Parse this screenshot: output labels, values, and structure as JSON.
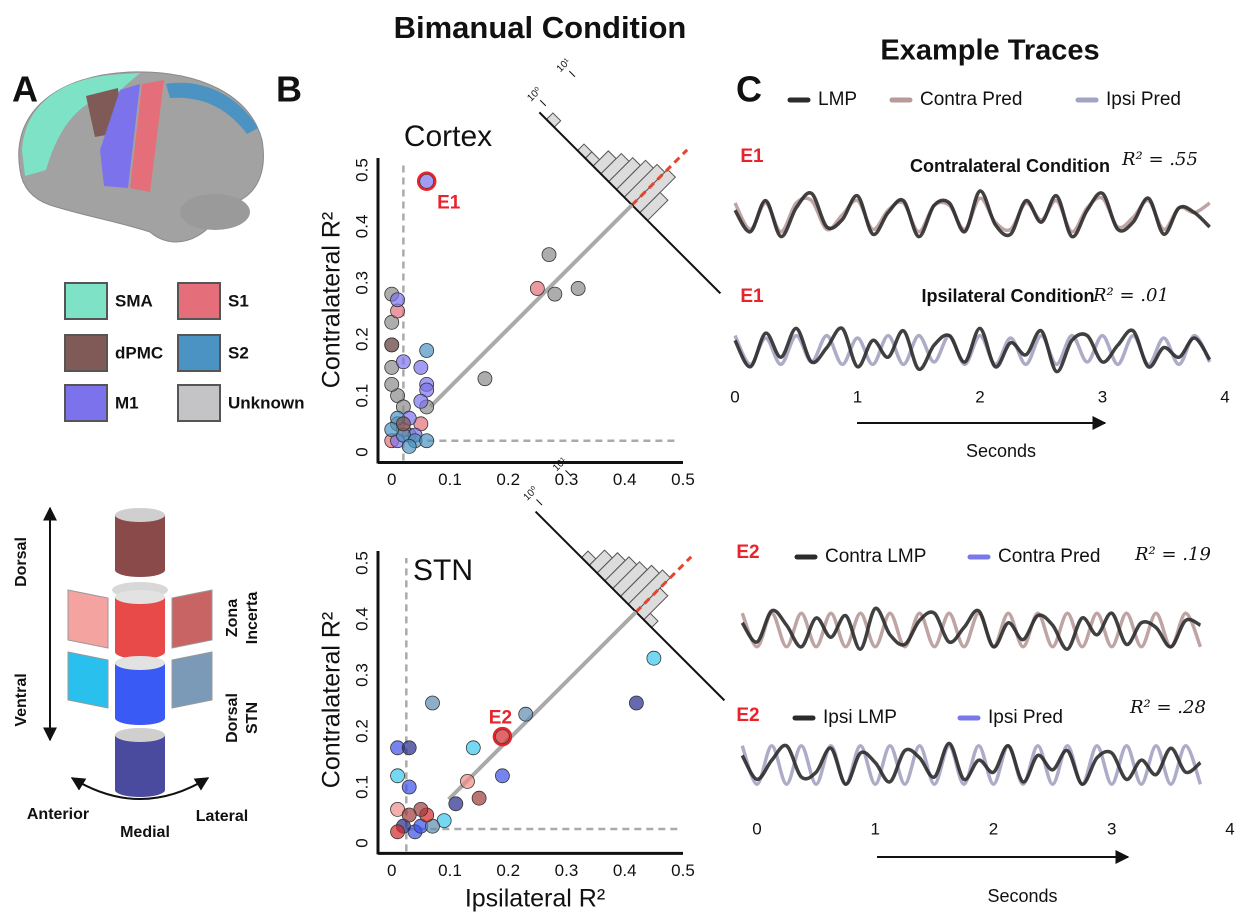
{
  "title": "Bimanual Condition",
  "panel_labels": {
    "a": "A",
    "b": "B",
    "c": "C"
  },
  "region_legend": [
    {
      "name": "SMA",
      "color": "#7ee3c6"
    },
    {
      "name": "S1",
      "color": "#e46f7a"
    },
    {
      "name": "dPMC",
      "color": "#7f5a57"
    },
    {
      "name": "S2",
      "color": "#4a93c2"
    },
    {
      "name": "M1",
      "color": "#7b72ec"
    },
    {
      "name": "Unknown",
      "color": "#c4c4c6"
    }
  ],
  "stn_diagram": {
    "dorsal": "Dorsal",
    "ventral": "Ventral",
    "anterior": "Anterior",
    "medial": "Medial",
    "lateral": "Lateral",
    "zona_incerta": [
      "Zona",
      "Incerta"
    ],
    "dorsal_stn": [
      "Dorsal",
      "STN"
    ]
  },
  "chart_data": [
    {
      "type": "scatter",
      "title": "Cortex",
      "y_label": "Contralateral R²",
      "xlim": [
        -0.015,
        0.5
      ],
      "ylim": [
        -0.015,
        0.5
      ],
      "xticks": [
        0,
        0.1,
        0.2,
        0.3,
        0.4,
        0.5
      ],
      "yticks": [
        0,
        0.1,
        0.2,
        0.3,
        0.4,
        0.5
      ],
      "threshold": 0.02,
      "series": [
        {
          "color": "#8a8a8a",
          "x": [
            0,
            0,
            0,
            0.01,
            0.02,
            0,
            0.27,
            0.28,
            0.32,
            0.16,
            0.06,
            0.01,
            0.03,
            0
          ],
          "values": [
            0.28,
            0.23,
            0.19,
            0.1,
            0.08,
            0.15,
            0.35,
            0.28,
            0.29,
            0.13,
            0.08,
            0.05,
            0.03,
            0.12
          ]
        },
        {
          "color": "#e46f7a",
          "x": [
            0.25,
            0.01,
            0.02,
            0.05,
            0
          ],
          "values": [
            0.29,
            0.25,
            0.04,
            0.05,
            0.02
          ]
        },
        {
          "color": "#7b72ec",
          "x": [
            0.01,
            0.02,
            0.05,
            0.06,
            0.06,
            0.05,
            0.03,
            0.04,
            0.01,
            0.06
          ],
          "values": [
            0.27,
            0.16,
            0.15,
            0.12,
            0.11,
            0.09,
            0.06,
            0.03,
            0.02,
            0.48
          ]
        },
        {
          "color": "#4a93c2",
          "x": [
            0.06,
            0.01,
            0.02,
            0.04,
            0.06,
            0,
            0.03
          ],
          "values": [
            0.18,
            0.06,
            0.03,
            0.02,
            0.02,
            0.04,
            0.01
          ]
        },
        {
          "color": "#7f5a57",
          "x": [
            0,
            0.02
          ],
          "values": [
            0.19,
            0.05
          ]
        }
      ],
      "annotations": [
        {
          "text": "E1",
          "x": 0.06,
          "y": 0.48
        }
      ],
      "histogram": {
        "counts": [
          1,
          0,
          0,
          0,
          1,
          1,
          2,
          3,
          4,
          6,
          8,
          10,
          3
        ],
        "lim": [
          0.6,
          30
        ],
        "log": true,
        "scale_ticks": [
          {
            "value": 1,
            "label": "10⁰"
          },
          {
            "value": 10,
            "label": "10¹"
          }
        ]
      }
    },
    {
      "type": "scatter",
      "title": "STN",
      "y_label": "Contralateral R²",
      "x_label": "Ipsilateral R²",
      "xlim": [
        -0.015,
        0.5
      ],
      "ylim": [
        -0.015,
        0.5
      ],
      "xticks": [
        0,
        0.1,
        0.2,
        0.3,
        0.4,
        0.5
      ],
      "yticks": [
        0,
        0.1,
        0.2,
        0.3,
        0.4,
        0.5
      ],
      "threshold": 0.025,
      "series": [
        {
          "color": "#39c8ee",
          "x": [
            0.01,
            0.14,
            0.45,
            0.09
          ],
          "values": [
            0.12,
            0.17,
            0.33,
            0.04
          ]
        },
        {
          "color": "#3a50e8",
          "x": [
            0.01,
            0.19,
            0.03,
            0.04,
            0.05
          ],
          "values": [
            0.17,
            0.12,
            0.1,
            0.02,
            0.03
          ]
        },
        {
          "color": "#252a8a",
          "x": [
            0.03,
            0.11,
            0.42,
            0.02
          ],
          "values": [
            0.17,
            0.07,
            0.25,
            0.03
          ]
        },
        {
          "color": "#5e8cb0",
          "x": [
            0.07,
            0.23,
            0.07
          ],
          "values": [
            0.25,
            0.23,
            0.03
          ]
        },
        {
          "color": "#f08c88",
          "x": [
            0.13,
            0.01
          ],
          "values": [
            0.11,
            0.06
          ]
        },
        {
          "color": "#d42828",
          "x": [
            0.19,
            0.06,
            0.01
          ],
          "values": [
            0.19,
            0.05,
            0.02
          ]
        },
        {
          "color": "#a03a3a",
          "x": [
            0.15,
            0.05,
            0.03
          ],
          "values": [
            0.08,
            0.06,
            0.05
          ]
        }
      ],
      "annotations": [
        {
          "text": "E2",
          "x": 0.19,
          "y": 0.19
        }
      ],
      "histogram": {
        "counts": [
          0,
          0,
          0,
          0,
          0,
          1,
          2,
          3,
          4,
          5,
          7,
          9,
          4,
          1
        ],
        "lim": [
          0.6,
          30
        ],
        "log": true,
        "scale_ticks": [
          {
            "value": 1,
            "label": "10⁰"
          },
          {
            "value": 10,
            "label": "10¹"
          }
        ]
      }
    }
  ],
  "example_traces": {
    "title": "Example Traces",
    "groups": [
      {
        "legend": [
          {
            "name": "LMP",
            "color": "#2b2b2b"
          },
          {
            "name": "Contra Pred",
            "color": "#b89a9a"
          },
          {
            "name": "Ipsi Pred",
            "color": "#a3a3c3"
          }
        ],
        "xlim": [
          0,
          4
        ],
        "xticks": [
          0,
          1,
          2,
          3,
          4
        ],
        "x_label": "Seconds",
        "x": [
          0,
          0.125,
          0.25,
          0.375,
          0.5,
          0.625,
          0.75,
          0.875,
          1,
          1.125,
          1.25,
          1.375,
          1.5,
          1.625,
          1.75,
          1.875,
          2,
          2.125,
          2.25,
          2.375,
          2.5,
          2.625,
          2.75,
          2.875,
          3,
          3.125,
          3.25,
          3.375,
          3.5,
          3.625,
          3.75,
          3.875
        ],
        "rows": [
          {
            "tag": "E1",
            "title": "Contralateral Condition",
            "r2_label": "R² = .55",
            "lines": [
              {
                "color": "#b89a9a",
                "values": [
                  0.5,
                  -0.6,
                  0.5,
                  -0.7,
                  0.5,
                  0.6,
                  -0.6,
                  0,
                  0.6,
                  -0.6,
                  0.2,
                  0.5,
                  -0.7,
                  0.4,
                  0.4,
                  -0.6,
                  0.7,
                  -0.3,
                  -0.6,
                  0.5,
                  -0.2,
                  0.6,
                  -0.7,
                  0.3,
                  0.7,
                  -0.5,
                  -0.1,
                  0.6,
                  -0.6,
                  0.3,
                  0.1,
                  0.5
                ]
              },
              {
                "color": "#2b2b2b",
                "values": [
                  0.2,
                  -0.7,
                  0.6,
                  -0.9,
                  0.3,
                  0.9,
                  -0.5,
                  -0.2,
                  0.8,
                  -0.8,
                  0.1,
                  0.6,
                  -0.9,
                  0.4,
                  0.5,
                  -0.7,
                  1,
                  -0.4,
                  -0.8,
                  0.6,
                  -0.3,
                  0.8,
                  -0.9,
                  0.2,
                  0.9,
                  -0.6,
                  -0.3,
                  0.7,
                  -0.8,
                  0.3,
                  0.1,
                  -0.5
                ]
              }
            ]
          },
          {
            "tag": "E1",
            "title": "Ipsilateral Condition",
            "r2_label": "R² = .01",
            "lines": [
              {
                "color": "#a3a3c3",
                "values": [
                  0.6,
                  -0.6,
                  0.5,
                  -0.6,
                  0.6,
                  -0.5,
                  0.6,
                  -0.6,
                  0.5,
                  -0.6,
                  0.6,
                  -0.6,
                  0.6,
                  -0.5,
                  0.6,
                  -0.6,
                  0.6,
                  -0.6,
                  0.5,
                  -0.6,
                  0.6,
                  -0.6,
                  0.6,
                  -0.5,
                  0.6,
                  -0.6,
                  0.6,
                  -0.6,
                  0.5,
                  -0.6,
                  0.6,
                  -0.5
                ]
              },
              {
                "color": "#2b2b2b",
                "values": [
                  0.4,
                  -0.7,
                  0.7,
                  -0.3,
                  0.9,
                  -0.5,
                  0.1,
                  0.9,
                  -0.7,
                  0.4,
                  -0.3,
                  0.8,
                  -0.8,
                  0.2,
                  0.6,
                  -0.5,
                  0.9,
                  -0.7,
                  0.3,
                  -0.2,
                  0.8,
                  -0.9,
                  0.4,
                  0.6,
                  -0.5,
                  0.2,
                  0.8,
                  -0.7,
                  0.1,
                  -0.3,
                  0.5,
                  -0.4
                ]
              }
            ]
          }
        ]
      },
      {
        "xlim": [
          0,
          4
        ],
        "xticks": [
          0,
          1,
          2,
          3,
          4
        ],
        "x_label": "Seconds",
        "x": [
          -0.125,
          0,
          0.125,
          0.25,
          0.375,
          0.5,
          0.625,
          0.75,
          0.875,
          1,
          1.125,
          1.25,
          1.375,
          1.5,
          1.625,
          1.75,
          1.875,
          2,
          2.125,
          2.25,
          2.375,
          2.5,
          2.625,
          2.75,
          2.875,
          3,
          3.125,
          3.25,
          3.375,
          3.5,
          3.625,
          3.75
        ],
        "rows": [
          {
            "tag": "E2",
            "legend": [
              {
                "name": "Contra LMP",
                "color": "#2b2b2b"
              },
              {
                "name": "Contra Pred",
                "color": "#7a78e8"
              }
            ],
            "r2_label": "R² = .19",
            "lines": [
              {
                "color": "#b89a9a",
                "values": [
                  0.7,
                  -0.7,
                  0.7,
                  -0.7,
                  0.7,
                  -0.7,
                  0.7,
                  -0.7,
                  0.7,
                  -0.7,
                  0.7,
                  -0.7,
                  0.7,
                  -0.7,
                  0.7,
                  -0.7,
                  0.7,
                  -0.7,
                  0.7,
                  -0.7,
                  0.7,
                  -0.7,
                  0.7,
                  -0.7,
                  0.7,
                  -0.7,
                  0.7,
                  -0.7,
                  0.7,
                  -0.7,
                  0.7,
                  -0.7
                ]
              },
              {
                "color": "#2b2b2b",
                "values": [
                  0.3,
                  -0.5,
                  0.8,
                  0.2,
                  -0.7,
                  0.5,
                  -0.3,
                  0.6,
                  -0.8,
                  0.9,
                  -0.2,
                  -0.6,
                  0.4,
                  0.7,
                  -0.5,
                  0.1,
                  0.8,
                  -0.7,
                  0.3,
                  -0.4,
                  0.6,
                  0.2,
                  -0.8,
                  0.5,
                  -0.2,
                  0.7,
                  -0.6,
                  0.3,
                  0.1,
                  -0.7,
                  0.4,
                  0.2
                ]
              }
            ]
          },
          {
            "tag": "E2",
            "legend": [
              {
                "name": "Ipsi LMP",
                "color": "#2b2b2b"
              },
              {
                "name": "Ipsi Pred",
                "color": "#7a78e8"
              }
            ],
            "r2_label": "R² = .28",
            "lines": [
              {
                "color": "#a3a3c3",
                "values": [
                  0.8,
                  -0.8,
                  0.8,
                  -0.8,
                  0.8,
                  -0.8,
                  0.8,
                  -0.8,
                  0.8,
                  -0.8,
                  0.8,
                  -0.8,
                  0.8,
                  -0.8,
                  0.8,
                  -0.8,
                  0.8,
                  -0.8,
                  0.8,
                  -0.8,
                  0.8,
                  -0.8,
                  0.8,
                  -0.8,
                  0.8,
                  -0.8,
                  0.8,
                  -0.8,
                  0.8,
                  -0.8,
                  0.8,
                  -0.8
                ]
              },
              {
                "color": "#2b2b2b",
                "values": [
                  0.4,
                  -0.6,
                  0.2,
                  0.8,
                  -0.5,
                  -0.3,
                  0.7,
                  -0.8,
                  0.5,
                  0.1,
                  -0.7,
                  0.6,
                  0.3,
                  -0.5,
                  0.9,
                  -0.6,
                  0.2,
                  -0.3,
                  0.8,
                  -0.7,
                  0.4,
                  -0.2,
                  0.6,
                  -0.8,
                  0.3,
                  0.5,
                  -0.6,
                  0.2,
                  -0.4,
                  0.7,
                  -0.3,
                  0.1
                ]
              }
            ]
          }
        ]
      }
    ]
  }
}
